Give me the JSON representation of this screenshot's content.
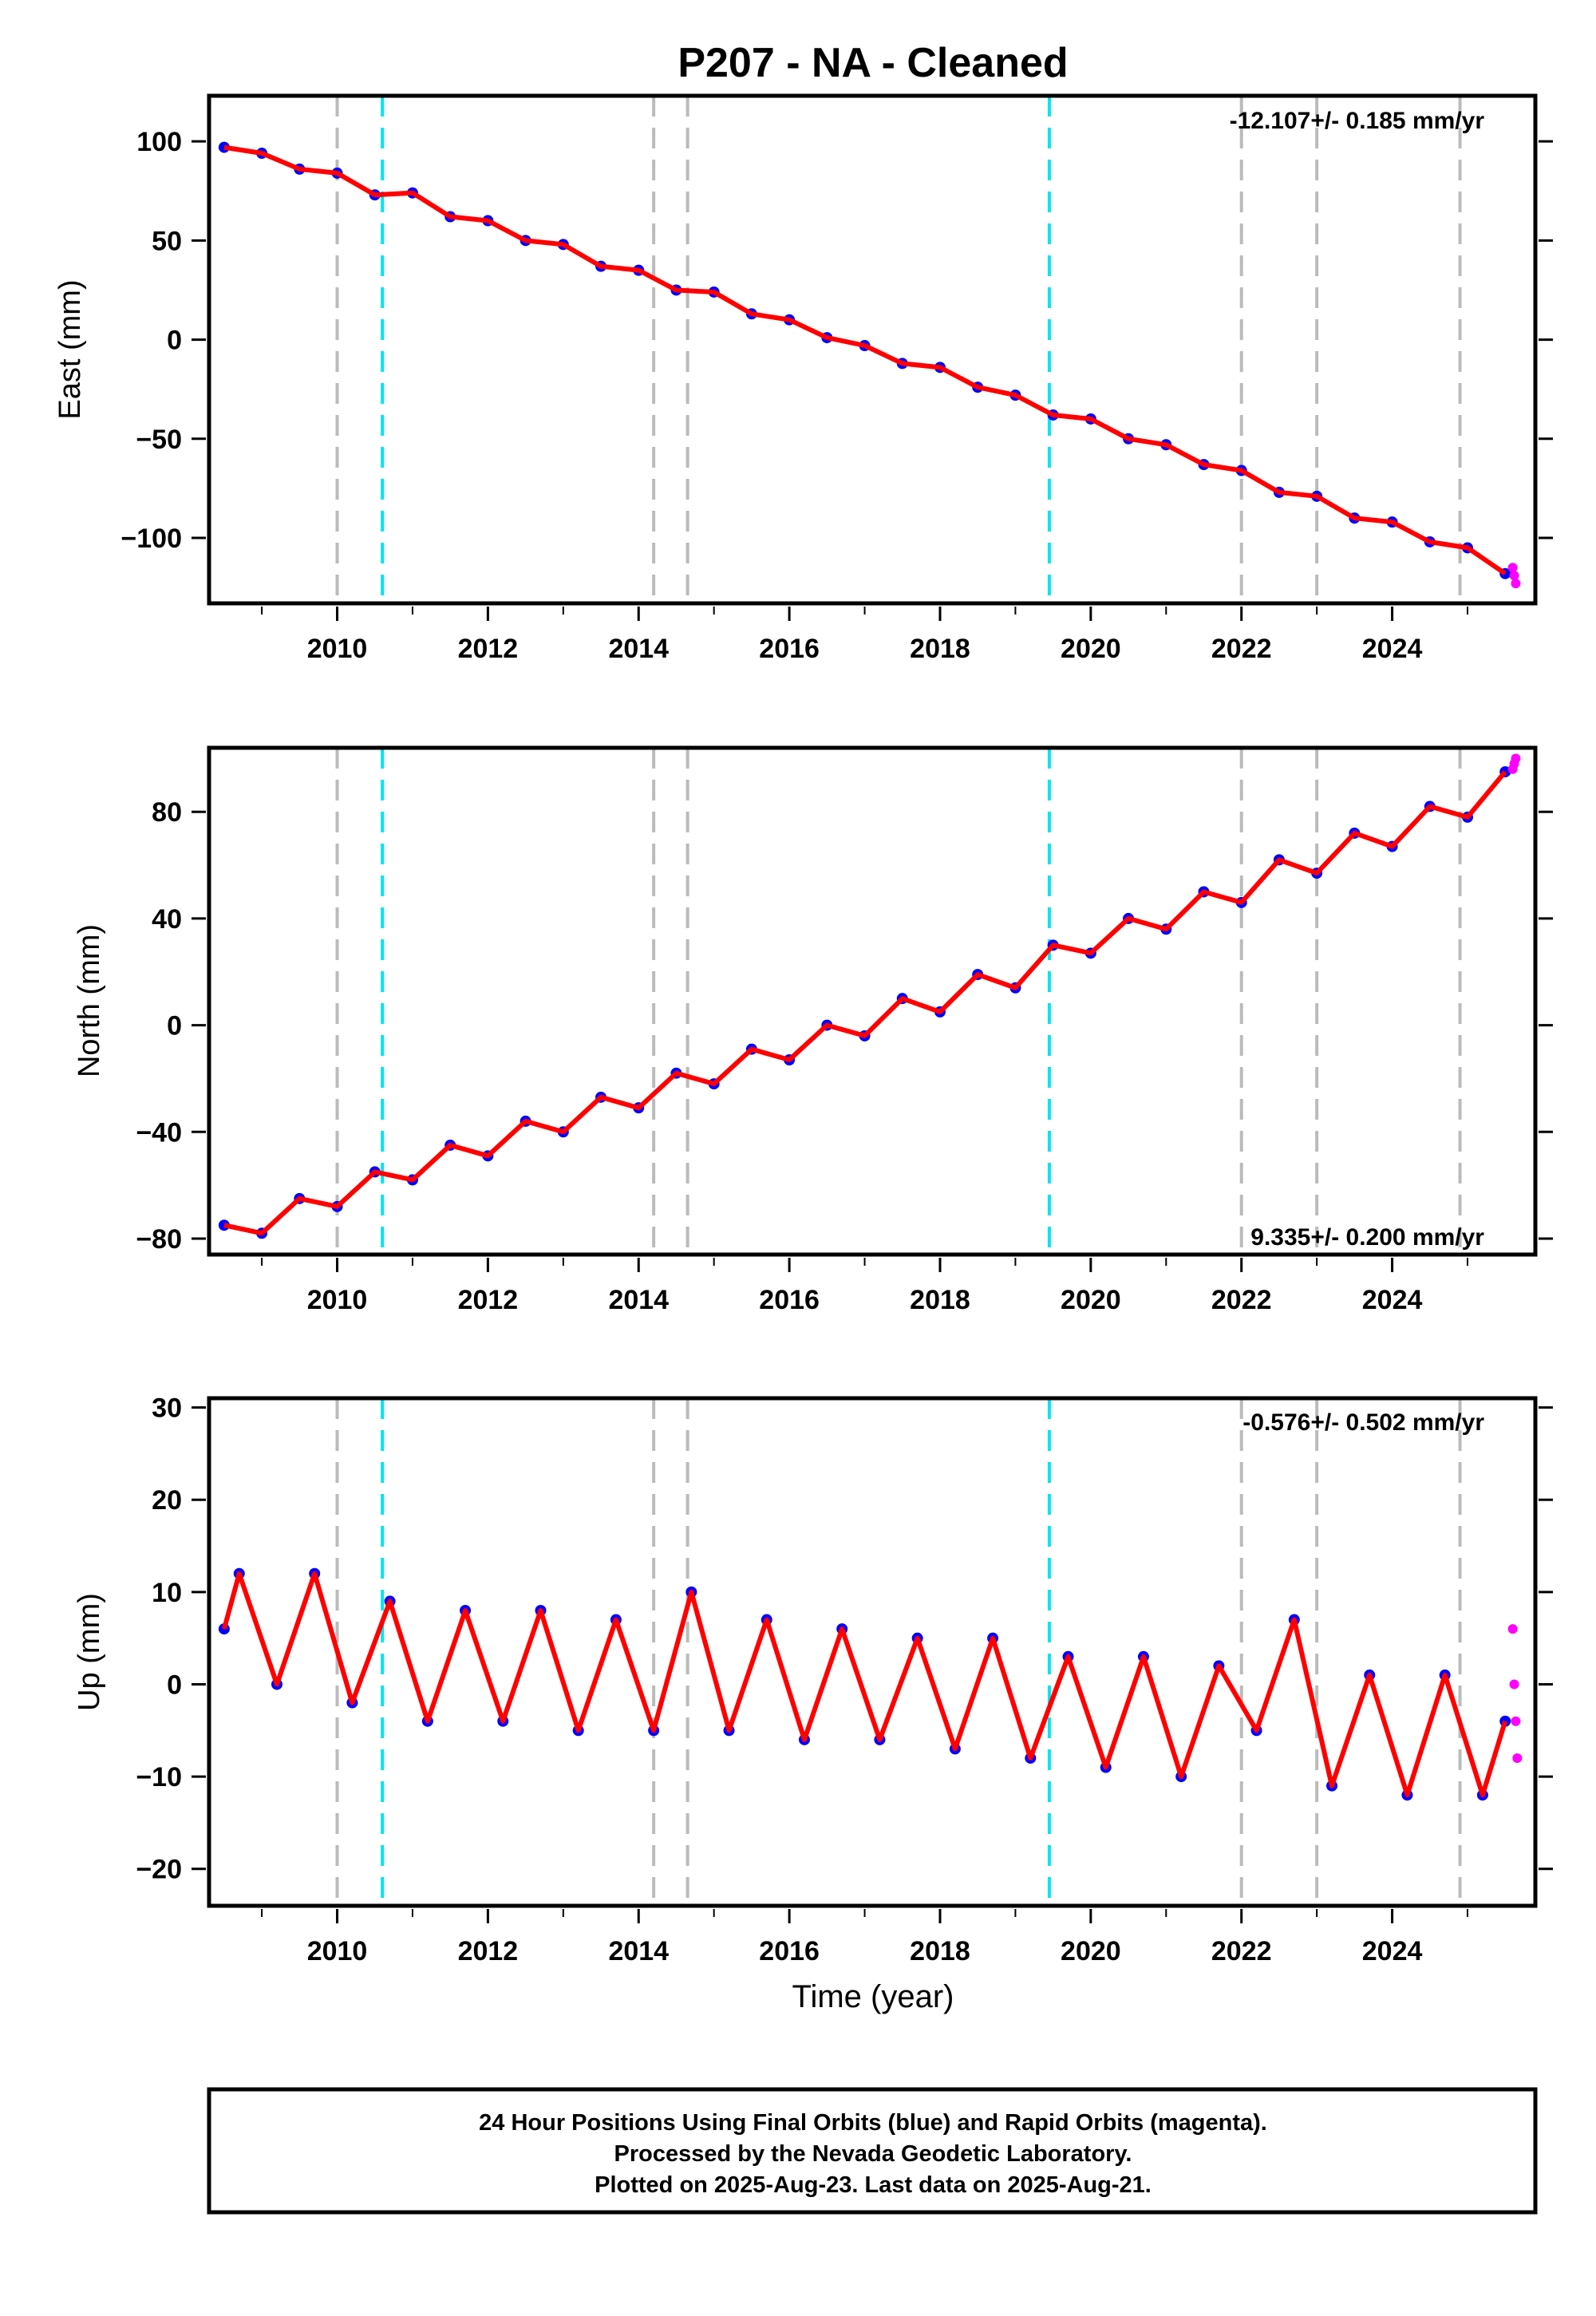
{
  "title": "P207  - NA - Cleaned",
  "xlabel": "Time (year)",
  "footer": {
    "line1": "24 Hour Positions Using Final Orbits (blue) and Rapid Orbits (magenta).",
    "line2": "Processed by the Nevada Geodetic Laboratory.",
    "line3": "Plotted on 2025-Aug-23. Last data on 2025-Aug-21."
  },
  "colors": {
    "final_orbits": "#0000ff",
    "rapid_orbits": "#ff00ff",
    "model": "#ff0000",
    "equipment_change": "#bbbbbb",
    "event": "#00e5ee"
  },
  "chart_data": [
    {
      "type": "scatter",
      "component": "east",
      "ylabel": "East (mm)",
      "rate_label": "-12.107+/- 0.185 mm/yr",
      "rate_position": "top-right",
      "xlim": [
        2008.3,
        2025.9
      ],
      "ylim": [
        -133,
        123
      ],
      "xticks": [
        2010,
        2012,
        2014,
        2016,
        2018,
        2020,
        2022,
        2024
      ],
      "xtick_labels": [
        "2010",
        "2012",
        "2014",
        "2016",
        "2018",
        "2020",
        "2022",
        "2024"
      ],
      "yticks": [
        100,
        50,
        0,
        -50,
        -100
      ],
      "ytick_labels": [
        "100",
        "50",
        "0",
        "−50",
        "−100"
      ],
      "series": [
        {
          "style": "final-orbits-points",
          "x": [
            2008.5,
            2009.0,
            2009.5,
            2010.0,
            2010.5,
            2011.0,
            2011.5,
            2012.0,
            2012.5,
            2013.0,
            2013.5,
            2014.0,
            2014.5,
            2015.0,
            2015.5,
            2016.0,
            2016.5,
            2017.0,
            2017.5,
            2018.0,
            2018.5,
            2019.0,
            2019.5,
            2020.0,
            2020.5,
            2021.0,
            2021.5,
            2022.0,
            2022.5,
            2023.0,
            2023.5,
            2024.0,
            2024.5,
            2025.0,
            2025.5
          ],
          "y": [
            97,
            94,
            86,
            84,
            73,
            74,
            62,
            60,
            50,
            48,
            37,
            35,
            25,
            24,
            13,
            10,
            1,
            -3,
            -12,
            -14,
            -24,
            -28,
            -38,
            -40,
            -50,
            -53,
            -63,
            -66,
            -77,
            -79,
            -90,
            -92,
            -102,
            -105,
            -118
          ]
        },
        {
          "style": "rapid-orbits-points",
          "x": [
            2025.6,
            2025.62,
            2025.64
          ],
          "y": [
            -115,
            -119,
            -123
          ]
        },
        {
          "style": "model-line",
          "x": [
            2008.5,
            2009.0,
            2009.5,
            2010.0,
            2010.5,
            2011.0,
            2011.5,
            2012.0,
            2012.5,
            2013.0,
            2013.5,
            2014.0,
            2014.5,
            2015.0,
            2015.5,
            2016.0,
            2016.5,
            2017.0,
            2017.5,
            2018.0,
            2018.5,
            2019.0,
            2019.5,
            2020.0,
            2020.5,
            2021.0,
            2021.5,
            2022.0,
            2022.5,
            2023.0,
            2023.5,
            2024.0,
            2024.5,
            2025.0,
            2025.5
          ],
          "y": [
            97,
            94,
            86,
            84,
            73,
            74,
            62,
            60,
            50,
            48,
            37,
            35,
            25,
            24,
            13,
            10,
            1,
            -3,
            -12,
            -14,
            -24,
            -28,
            -38,
            -40,
            -50,
            -53,
            -63,
            -66,
            -77,
            -79,
            -90,
            -92,
            -102,
            -105,
            -118
          ]
        }
      ],
      "reference_lines": {
        "equipment_change": [
          2010.0,
          2014.2,
          2014.65,
          2022.0,
          2023.0,
          2024.9
        ],
        "event": [
          2010.6,
          2019.45
        ]
      }
    },
    {
      "type": "scatter",
      "component": "north",
      "ylabel": "North (mm)",
      "rate_label": "9.335+/- 0.200 mm/yr",
      "rate_position": "bottom-right",
      "xlim": [
        2008.3,
        2025.9
      ],
      "ylim": [
        -86,
        104
      ],
      "xticks": [
        2010,
        2012,
        2014,
        2016,
        2018,
        2020,
        2022,
        2024
      ],
      "xtick_labels": [
        "2010",
        "2012",
        "2014",
        "2016",
        "2018",
        "2020",
        "2022",
        "2024"
      ],
      "yticks": [
        80,
        40,
        0,
        -40,
        -80
      ],
      "ytick_labels": [
        "80",
        "40",
        "0",
        "−40",
        "−80"
      ],
      "series": [
        {
          "style": "final-orbits-points",
          "x": [
            2008.5,
            2009.0,
            2009.5,
            2010.0,
            2010.5,
            2011.0,
            2011.5,
            2012.0,
            2012.5,
            2013.0,
            2013.5,
            2014.0,
            2014.5,
            2015.0,
            2015.5,
            2016.0,
            2016.5,
            2017.0,
            2017.5,
            2018.0,
            2018.5,
            2019.0,
            2019.5,
            2020.0,
            2020.5,
            2021.0,
            2021.5,
            2022.0,
            2022.5,
            2023.0,
            2023.5,
            2024.0,
            2024.5,
            2025.0,
            2025.5
          ],
          "y": [
            -75,
            -78,
            -65,
            -68,
            -55,
            -58,
            -45,
            -49,
            -36,
            -40,
            -27,
            -31,
            -18,
            -22,
            -9,
            -13,
            0,
            -4,
            10,
            5,
            19,
            14,
            30,
            27,
            40,
            36,
            50,
            46,
            62,
            57,
            72,
            67,
            82,
            78,
            95
          ]
        },
        {
          "style": "rapid-orbits-points",
          "x": [
            2025.6,
            2025.62,
            2025.64
          ],
          "y": [
            96,
            98,
            100
          ]
        },
        {
          "style": "model-line",
          "x": [
            2008.5,
            2009.0,
            2009.5,
            2010.0,
            2010.5,
            2011.0,
            2011.5,
            2012.0,
            2012.5,
            2013.0,
            2013.5,
            2014.0,
            2014.5,
            2015.0,
            2015.5,
            2016.0,
            2016.5,
            2017.0,
            2017.5,
            2018.0,
            2018.5,
            2019.0,
            2019.5,
            2020.0,
            2020.5,
            2021.0,
            2021.5,
            2022.0,
            2022.5,
            2023.0,
            2023.5,
            2024.0,
            2024.5,
            2025.0,
            2025.5
          ],
          "y": [
            -75,
            -78,
            -65,
            -68,
            -55,
            -58,
            -45,
            -49,
            -36,
            -40,
            -27,
            -31,
            -18,
            -22,
            -9,
            -13,
            0,
            -4,
            10,
            5,
            19,
            14,
            30,
            27,
            40,
            36,
            50,
            46,
            62,
            57,
            72,
            67,
            82,
            78,
            95
          ]
        }
      ],
      "reference_lines": {
        "equipment_change": [
          2010.0,
          2014.2,
          2014.65,
          2022.0,
          2023.0,
          2024.9
        ],
        "event": [
          2010.6,
          2019.45
        ]
      }
    },
    {
      "type": "scatter",
      "component": "up",
      "ylabel": "Up (mm)",
      "rate_label": "-0.576+/- 0.502 mm/yr",
      "rate_position": "top-right",
      "xlim": [
        2008.3,
        2025.9
      ],
      "ylim": [
        -24,
        31
      ],
      "xticks": [
        2010,
        2012,
        2014,
        2016,
        2018,
        2020,
        2022,
        2024
      ],
      "xtick_labels": [
        "2010",
        "2012",
        "2014",
        "2016",
        "2018",
        "2020",
        "2022",
        "2024"
      ],
      "yticks": [
        30,
        20,
        10,
        0,
        -10,
        -20
      ],
      "ytick_labels": [
        "30",
        "20",
        "10",
        "0",
        "−10",
        "−20"
      ],
      "series": [
        {
          "style": "final-orbits-points",
          "x": [
            2008.5,
            2008.7,
            2009.2,
            2009.7,
            2010.2,
            2010.7,
            2011.2,
            2011.7,
            2012.2,
            2012.7,
            2013.2,
            2013.7,
            2014.2,
            2014.7,
            2015.2,
            2015.7,
            2016.2,
            2016.7,
            2017.2,
            2017.7,
            2018.2,
            2018.7,
            2019.2,
            2019.7,
            2020.2,
            2020.7,
            2021.2,
            2021.7,
            2022.2,
            2022.7,
            2023.2,
            2023.7,
            2024.2,
            2024.7,
            2025.2,
            2025.5
          ],
          "y": [
            6,
            12,
            0,
            12,
            -2,
            9,
            -4,
            8,
            -4,
            8,
            -5,
            7,
            -5,
            10,
            -5,
            7,
            -6,
            6,
            -6,
            5,
            -7,
            5,
            -8,
            3,
            -9,
            3,
            -10,
            2,
            -5,
            7,
            -11,
            1,
            -12,
            1,
            -12,
            -4
          ]
        },
        {
          "style": "rapid-orbits-points",
          "x": [
            2025.6,
            2025.62,
            2025.64,
            2025.66
          ],
          "y": [
            6,
            0,
            -4,
            -8
          ]
        },
        {
          "style": "model-line",
          "x": [
            2008.5,
            2008.7,
            2009.2,
            2009.7,
            2010.2,
            2010.7,
            2011.2,
            2011.7,
            2012.2,
            2012.7,
            2013.2,
            2013.7,
            2014.2,
            2014.7,
            2015.2,
            2015.7,
            2016.2,
            2016.7,
            2017.2,
            2017.7,
            2018.2,
            2018.7,
            2019.2,
            2019.7,
            2020.2,
            2020.7,
            2021.2,
            2021.7,
            2022.2,
            2022.7,
            2023.2,
            2023.7,
            2024.2,
            2024.7,
            2025.2,
            2025.5
          ],
          "y": [
            6,
            12,
            0,
            12,
            -2,
            9,
            -4,
            8,
            -4,
            8,
            -5,
            7,
            -5,
            10,
            -5,
            7,
            -6,
            6,
            -6,
            5,
            -7,
            5,
            -8,
            3,
            -9,
            3,
            -10,
            2,
            -5,
            7,
            -11,
            1,
            -12,
            1,
            -12,
            -4
          ]
        }
      ],
      "reference_lines": {
        "equipment_change": [
          2010.0,
          2014.2,
          2014.65,
          2022.0,
          2023.0,
          2024.9
        ],
        "event": [
          2010.6,
          2019.45
        ]
      }
    }
  ]
}
